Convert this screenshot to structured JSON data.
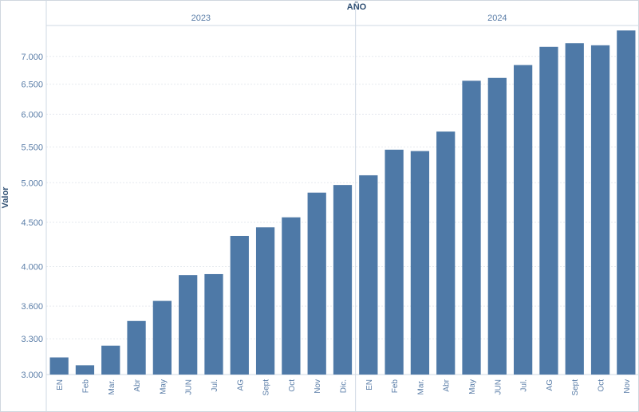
{
  "chart_data": {
    "type": "bar",
    "column_header": "AÑO",
    "ylabel": "Valor",
    "yscale": "log",
    "ylim": [
      3000,
      7600
    ],
    "yticks": [
      "3.000",
      "3.300",
      "3.600",
      "4.000",
      "4.500",
      "5.000",
      "5.500",
      "6.000",
      "6.500",
      "7.000"
    ],
    "ytick_values": [
      3000,
      3300,
      3600,
      4000,
      4500,
      5000,
      5500,
      6000,
      6500,
      7000
    ],
    "groups": [
      {
        "year": "2023",
        "categories": [
          "EN",
          "Feb",
          "Mar.",
          "Abr",
          "May",
          "JUN",
          "Jul.",
          "AG",
          "Sept",
          "Oct",
          "Nov",
          "Dic."
        ],
        "values": [
          3140,
          3075,
          3240,
          3460,
          3650,
          3910,
          3920,
          4340,
          4440,
          4560,
          4870,
          4970
        ]
      },
      {
        "year": "2024",
        "categories": [
          "EN",
          "Feb",
          "Mar.",
          "Abr",
          "May",
          "JUN",
          "Jul.",
          "AG",
          "Sept",
          "Oct",
          "Nov"
        ],
        "values": [
          5100,
          5460,
          5440,
          5730,
          6560,
          6610,
          6840,
          7180,
          7250,
          7210,
          7500
        ]
      }
    ],
    "bar_color": "#4e79a7",
    "grid": true,
    "legend": "none"
  }
}
